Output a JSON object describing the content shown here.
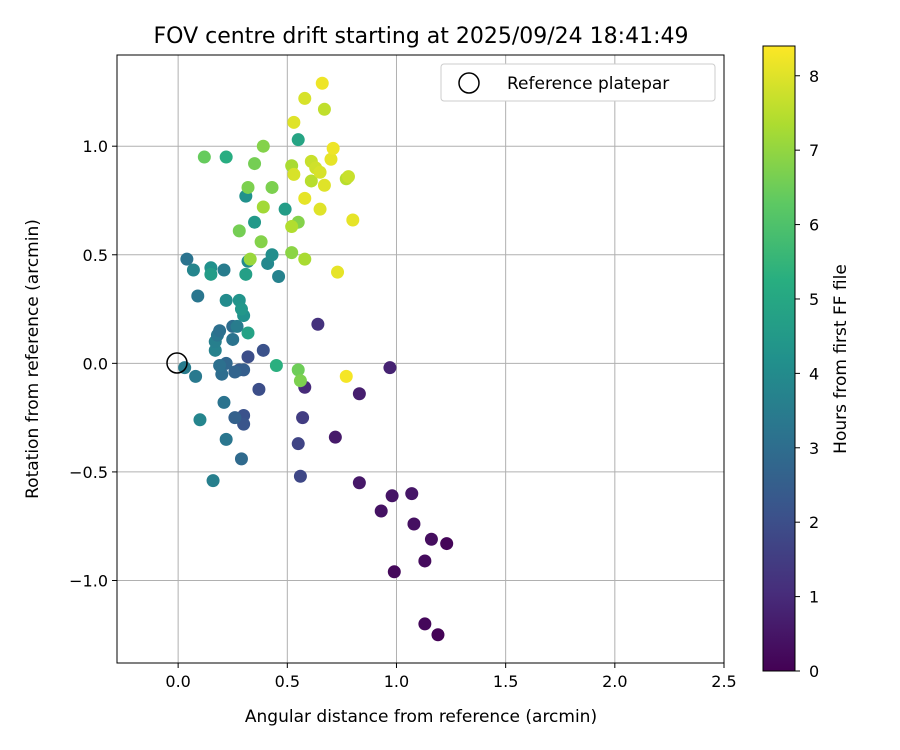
{
  "chart_data": {
    "type": "scatter",
    "title": "FOV centre drift starting at 2025/09/24 18:41:49",
    "xlabel": "Angular distance from reference (arcmin)",
    "ylabel": "Rotation from reference (arcmin)",
    "xlim": [
      -0.28,
      2.5
    ],
    "ylim": [
      -1.38,
      1.42
    ],
    "xticks": [
      0.0,
      0.5,
      1.0,
      1.5,
      2.0,
      2.5
    ],
    "xtick_labels": [
      "0.0",
      "0.5",
      "1.0",
      "1.5",
      "2.0",
      "2.5"
    ],
    "yticks": [
      -1.0,
      -0.5,
      0.0,
      0.5,
      1.0
    ],
    "ytick_labels": [
      "−1.0",
      "−0.5",
      "0.0",
      "0.5",
      "1.0"
    ],
    "grid": true,
    "legend": {
      "position": "upper-right",
      "entries": [
        "Reference platepar"
      ]
    },
    "reference": {
      "x": 0.0,
      "y": 0.0
    },
    "colorbar": {
      "label": "Hours from first FF file",
      "colormap": "viridis",
      "range": [
        0,
        8.4
      ],
      "ticks": [
        0,
        1,
        2,
        3,
        4,
        5,
        6,
        7,
        8
      ],
      "tick_labels": [
        "0",
        "1",
        "2",
        "3",
        "4",
        "5",
        "6",
        "7",
        "8"
      ]
    },
    "points": [
      {
        "x": 1.19,
        "y": -1.25,
        "h": 0.05
      },
      {
        "x": 1.13,
        "y": -1.2,
        "h": 0.15
      },
      {
        "x": 0.99,
        "y": -0.96,
        "h": 0.2
      },
      {
        "x": 1.13,
        "y": -0.91,
        "h": 0.25
      },
      {
        "x": 1.23,
        "y": -0.83,
        "h": 0.1
      },
      {
        "x": 1.16,
        "y": -0.81,
        "h": 0.3
      },
      {
        "x": 1.08,
        "y": -0.74,
        "h": 0.35
      },
      {
        "x": 0.93,
        "y": -0.68,
        "h": 0.4
      },
      {
        "x": 0.98,
        "y": -0.61,
        "h": 0.45
      },
      {
        "x": 1.07,
        "y": -0.6,
        "h": 0.5
      },
      {
        "x": 0.83,
        "y": -0.55,
        "h": 0.55
      },
      {
        "x": 0.72,
        "y": -0.34,
        "h": 0.6
      },
      {
        "x": 0.83,
        "y": -0.14,
        "h": 0.7
      },
      {
        "x": 0.58,
        "y": -0.11,
        "h": 1.0
      },
      {
        "x": 0.97,
        "y": -0.02,
        "h": 0.8
      },
      {
        "x": 0.64,
        "y": 0.18,
        "h": 1.2
      },
      {
        "x": 0.57,
        "y": -0.25,
        "h": 1.5
      },
      {
        "x": 0.55,
        "y": -0.37,
        "h": 1.7
      },
      {
        "x": 0.56,
        "y": -0.52,
        "h": 1.8
      },
      {
        "x": 0.37,
        "y": -0.12,
        "h": 2.0
      },
      {
        "x": 0.3,
        "y": -0.24,
        "h": 2.1
      },
      {
        "x": 0.3,
        "y": -0.28,
        "h": 2.2
      },
      {
        "x": 0.26,
        "y": -0.25,
        "h": 2.6
      },
      {
        "x": 0.28,
        "y": -0.03,
        "h": 2.4
      },
      {
        "x": 0.3,
        "y": -0.03,
        "h": 2.5
      },
      {
        "x": 0.26,
        "y": -0.04,
        "h": 2.7
      },
      {
        "x": 0.32,
        "y": 0.03,
        "h": 2.0
      },
      {
        "x": 0.39,
        "y": 0.06,
        "h": 2.1
      },
      {
        "x": 0.22,
        "y": 0.0,
        "h": 2.8
      },
      {
        "x": 0.2,
        "y": -0.05,
        "h": 3.0
      },
      {
        "x": 0.19,
        "y": -0.01,
        "h": 3.1
      },
      {
        "x": 0.21,
        "y": -0.18,
        "h": 3.2
      },
      {
        "x": 0.22,
        "y": -0.35,
        "h": 3.3
      },
      {
        "x": 0.29,
        "y": -0.44,
        "h": 2.9
      },
      {
        "x": 0.16,
        "y": -0.54,
        "h": 3.6
      },
      {
        "x": 0.1,
        "y": -0.26,
        "h": 3.8
      },
      {
        "x": 0.08,
        "y": -0.06,
        "h": 3.4
      },
      {
        "x": 0.03,
        "y": -0.02,
        "h": 3.5
      },
      {
        "x": 0.17,
        "y": 0.06,
        "h": 3.7
      },
      {
        "x": 0.17,
        "y": 0.1,
        "h": 3.6
      },
      {
        "x": 0.18,
        "y": 0.13,
        "h": 3.3
      },
      {
        "x": 0.19,
        "y": 0.15,
        "h": 3.1
      },
      {
        "x": 0.25,
        "y": 0.11,
        "h": 3.2
      },
      {
        "x": 0.25,
        "y": 0.17,
        "h": 3.0
      },
      {
        "x": 0.27,
        "y": 0.17,
        "h": 3.5
      },
      {
        "x": 0.3,
        "y": 0.22,
        "h": 4.2
      },
      {
        "x": 0.32,
        "y": 0.14,
        "h": 4.8
      },
      {
        "x": 0.22,
        "y": 0.29,
        "h": 4.0
      },
      {
        "x": 0.28,
        "y": 0.29,
        "h": 4.3
      },
      {
        "x": 0.29,
        "y": 0.25,
        "h": 4.4
      },
      {
        "x": 0.09,
        "y": 0.31,
        "h": 3.3
      },
      {
        "x": 0.04,
        "y": 0.48,
        "h": 3.2
      },
      {
        "x": 0.07,
        "y": 0.43,
        "h": 3.8
      },
      {
        "x": 0.15,
        "y": 0.44,
        "h": 4.2
      },
      {
        "x": 0.15,
        "y": 0.41,
        "h": 4.6
      },
      {
        "x": 0.21,
        "y": 0.43,
        "h": 3.5
      },
      {
        "x": 0.31,
        "y": 0.41,
        "h": 4.7
      },
      {
        "x": 0.32,
        "y": 0.47,
        "h": 4.0
      },
      {
        "x": 0.41,
        "y": 0.46,
        "h": 3.9
      },
      {
        "x": 0.43,
        "y": 0.5,
        "h": 4.1
      },
      {
        "x": 0.46,
        "y": 0.4,
        "h": 3.7
      },
      {
        "x": 0.35,
        "y": 0.65,
        "h": 4.5
      },
      {
        "x": 0.31,
        "y": 0.77,
        "h": 4.2
      },
      {
        "x": 0.49,
        "y": 0.71,
        "h": 4.6
      },
      {
        "x": 0.55,
        "y": 1.03,
        "h": 4.9
      },
      {
        "x": 0.22,
        "y": 0.95,
        "h": 5.2
      },
      {
        "x": 0.45,
        "y": -0.01,
        "h": 5.3
      },
      {
        "x": 0.12,
        "y": 0.95,
        "h": 6.4
      },
      {
        "x": 0.28,
        "y": 0.61,
        "h": 6.6
      },
      {
        "x": 0.32,
        "y": 0.81,
        "h": 6.7
      },
      {
        "x": 0.35,
        "y": 0.92,
        "h": 6.6
      },
      {
        "x": 0.39,
        "y": 1.0,
        "h": 6.8
      },
      {
        "x": 0.43,
        "y": 0.81,
        "h": 6.7
      },
      {
        "x": 0.38,
        "y": 0.56,
        "h": 6.8
      },
      {
        "x": 0.39,
        "y": 0.72,
        "h": 7.2
      },
      {
        "x": 0.33,
        "y": 0.48,
        "h": 7.1
      },
      {
        "x": 0.52,
        "y": 0.51,
        "h": 6.9
      },
      {
        "x": 0.55,
        "y": 0.65,
        "h": 6.8
      },
      {
        "x": 0.52,
        "y": 0.63,
        "h": 7.4
      },
      {
        "x": 0.58,
        "y": 0.48,
        "h": 7.3
      },
      {
        "x": 0.55,
        "y": -0.03,
        "h": 6.5
      },
      {
        "x": 0.56,
        "y": -0.08,
        "h": 6.7
      },
      {
        "x": 0.52,
        "y": 0.91,
        "h": 7.3
      },
      {
        "x": 0.53,
        "y": 0.87,
        "h": 7.9
      },
      {
        "x": 0.53,
        "y": 1.11,
        "h": 8.0
      },
      {
        "x": 0.58,
        "y": 0.76,
        "h": 8.1
      },
      {
        "x": 0.58,
        "y": 1.22,
        "h": 7.9
      },
      {
        "x": 0.61,
        "y": 0.84,
        "h": 7.5
      },
      {
        "x": 0.61,
        "y": 0.93,
        "h": 7.7
      },
      {
        "x": 0.63,
        "y": 0.9,
        "h": 7.8
      },
      {
        "x": 0.65,
        "y": 0.71,
        "h": 8.0
      },
      {
        "x": 0.66,
        "y": 1.29,
        "h": 8.2
      },
      {
        "x": 0.67,
        "y": 1.17,
        "h": 7.6
      },
      {
        "x": 0.67,
        "y": 0.82,
        "h": 8.0
      },
      {
        "x": 0.65,
        "y": 0.88,
        "h": 7.9
      },
      {
        "x": 0.7,
        "y": 0.94,
        "h": 8.1
      },
      {
        "x": 0.71,
        "y": 0.99,
        "h": 8.2
      },
      {
        "x": 0.73,
        "y": 0.42,
        "h": 8.1
      },
      {
        "x": 0.77,
        "y": 0.85,
        "h": 7.5
      },
      {
        "x": 0.78,
        "y": 0.86,
        "h": 7.7
      },
      {
        "x": 0.8,
        "y": 0.66,
        "h": 8.1
      },
      {
        "x": 0.77,
        "y": -0.06,
        "h": 8.3
      }
    ]
  }
}
